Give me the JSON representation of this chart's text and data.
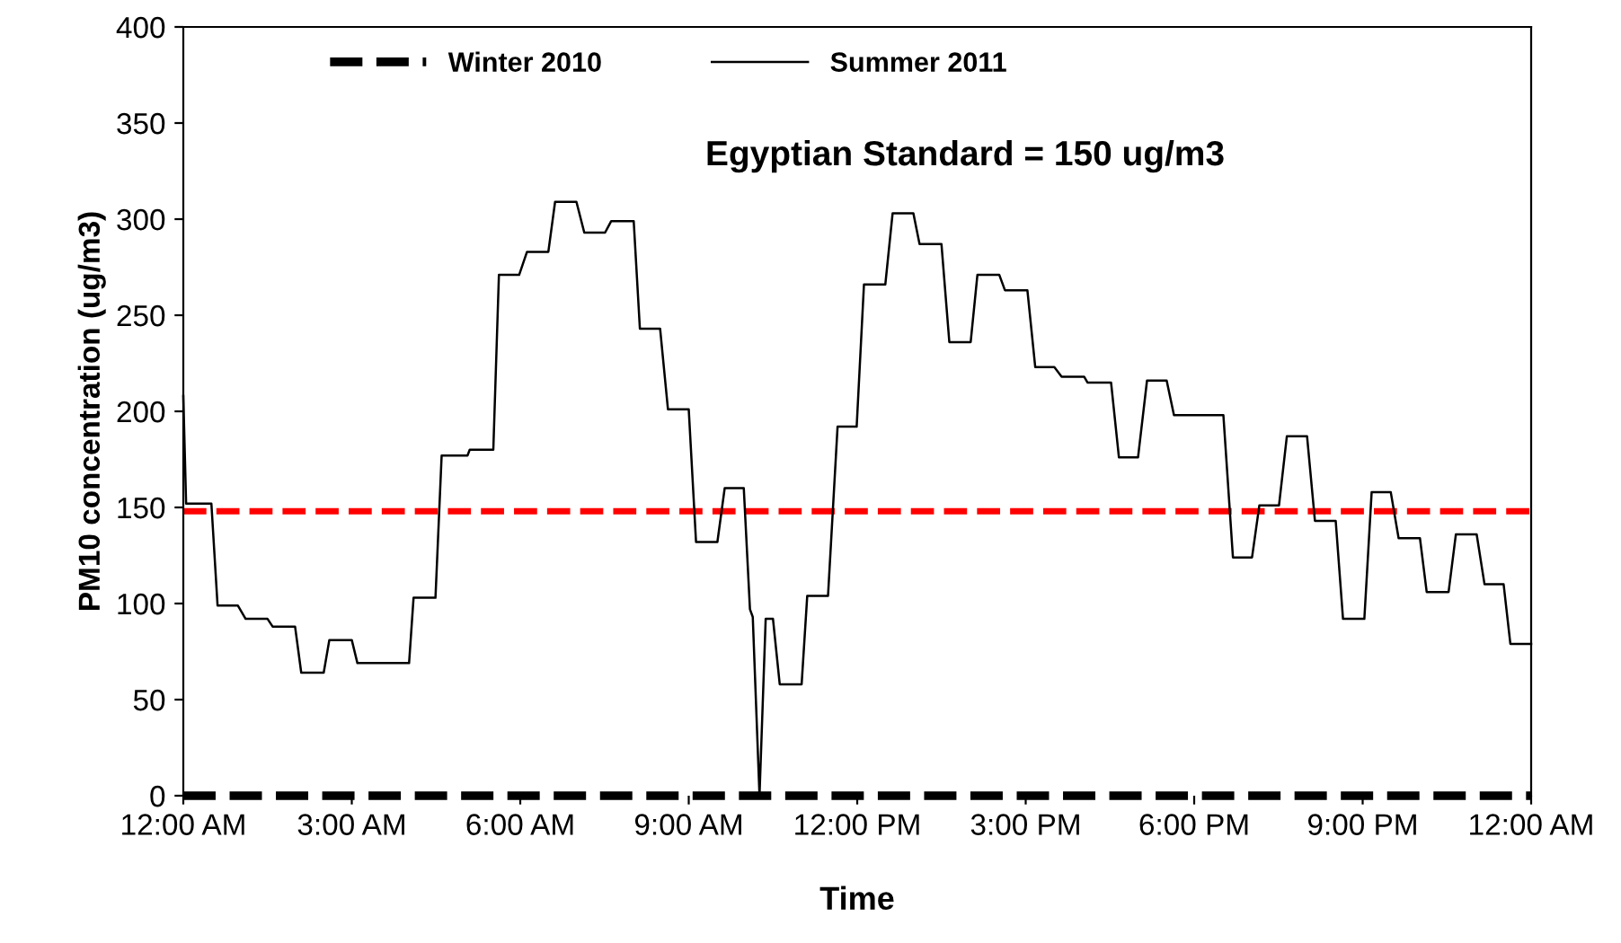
{
  "chart_data": {
    "type": "line",
    "xlabel": "Time",
    "ylabel": "PM10 concentration (ug/m3)",
    "xlim": [
      0,
      24
    ],
    "xticks": [
      {
        "value": 0,
        "label": "12:00 AM"
      },
      {
        "value": 3,
        "label": "3:00 AM"
      },
      {
        "value": 6,
        "label": "6:00 AM"
      },
      {
        "value": 9,
        "label": "9:00 AM"
      },
      {
        "value": 12,
        "label": "12:00 PM"
      },
      {
        "value": 15,
        "label": "3:00 PM"
      },
      {
        "value": 18,
        "label": "6:00 PM"
      },
      {
        "value": 21,
        "label": "9:00 PM"
      },
      {
        "value": 24,
        "label": "12:00 AM"
      }
    ],
    "ylim": [
      0,
      400
    ],
    "yticks": [
      0,
      50,
      100,
      150,
      200,
      250,
      300,
      350,
      400
    ],
    "grid": false,
    "legend": "top",
    "marker": "none",
    "series": [
      {
        "name": "Winter 2010",
        "color": "#000000",
        "line_style": "dashed",
        "x": [
          0,
          24
        ],
        "values": [
          0,
          0
        ]
      },
      {
        "name": "Summer 2011",
        "color": "#000000",
        "line_style": "solid",
        "x": [
          0,
          0.05,
          0.5,
          0.61,
          0.97,
          1.11,
          1.5,
          1.59,
          1.99,
          2.1,
          2.5,
          2.6,
          3.0,
          3.1,
          4.02,
          4.1,
          4.49,
          4.6,
          5.06,
          5.1,
          5.52,
          5.62,
          5.98,
          6.12,
          6.5,
          6.62,
          7.0,
          7.14,
          7.51,
          7.62,
          8.02,
          8.13,
          8.49,
          8.63,
          9.0,
          9.13,
          9.51,
          9.64,
          9.98,
          10.09,
          10.14,
          10.26,
          10.37,
          10.5,
          10.62,
          11.01,
          11.11,
          11.48,
          11.65,
          11.99,
          12.12,
          12.5,
          12.63,
          13.0,
          13.11,
          13.5,
          13.64,
          14.02,
          14.14,
          14.53,
          14.63,
          15.03,
          15.17,
          15.51,
          15.64,
          16.04,
          16.1,
          16.52,
          16.66,
          17.0,
          17.16,
          17.51,
          17.64,
          18.52,
          18.69,
          19.03,
          19.16,
          19.51,
          19.65,
          20.01,
          20.15,
          20.52,
          20.65,
          21.03,
          21.16,
          21.5,
          21.64,
          22.02,
          22.14,
          22.53,
          22.66,
          23.03,
          23.17,
          23.51,
          23.63,
          24
        ],
        "values": [
          208,
          152,
          152,
          99,
          99,
          92,
          92,
          88,
          88,
          64,
          64,
          81,
          81,
          69,
          69,
          103,
          103,
          177,
          177,
          180,
          180,
          271,
          271,
          283,
          283,
          309,
          309,
          293,
          293,
          299,
          299,
          243,
          243,
          201,
          201,
          132,
          132,
          160,
          160,
          97,
          93,
          0,
          92,
          92,
          58,
          58,
          104,
          104,
          192,
          192,
          266,
          266,
          303,
          303,
          287,
          287,
          236,
          236,
          271,
          271,
          263,
          263,
          223,
          223,
          218,
          218,
          215,
          215,
          176,
          176,
          216,
          216,
          198,
          198,
          124,
          124,
          151,
          151,
          187,
          187,
          143,
          143,
          92,
          92,
          158,
          158,
          134,
          134,
          106,
          106,
          136,
          136,
          110,
          110,
          79,
          79
        ]
      }
    ],
    "ref_lines": [
      {
        "axis": "y",
        "value": 148,
        "color": "#ff0000",
        "line_style": "dashed"
      }
    ],
    "annotations": [
      "Egyptian Standard = 150 ug/m3"
    ]
  }
}
